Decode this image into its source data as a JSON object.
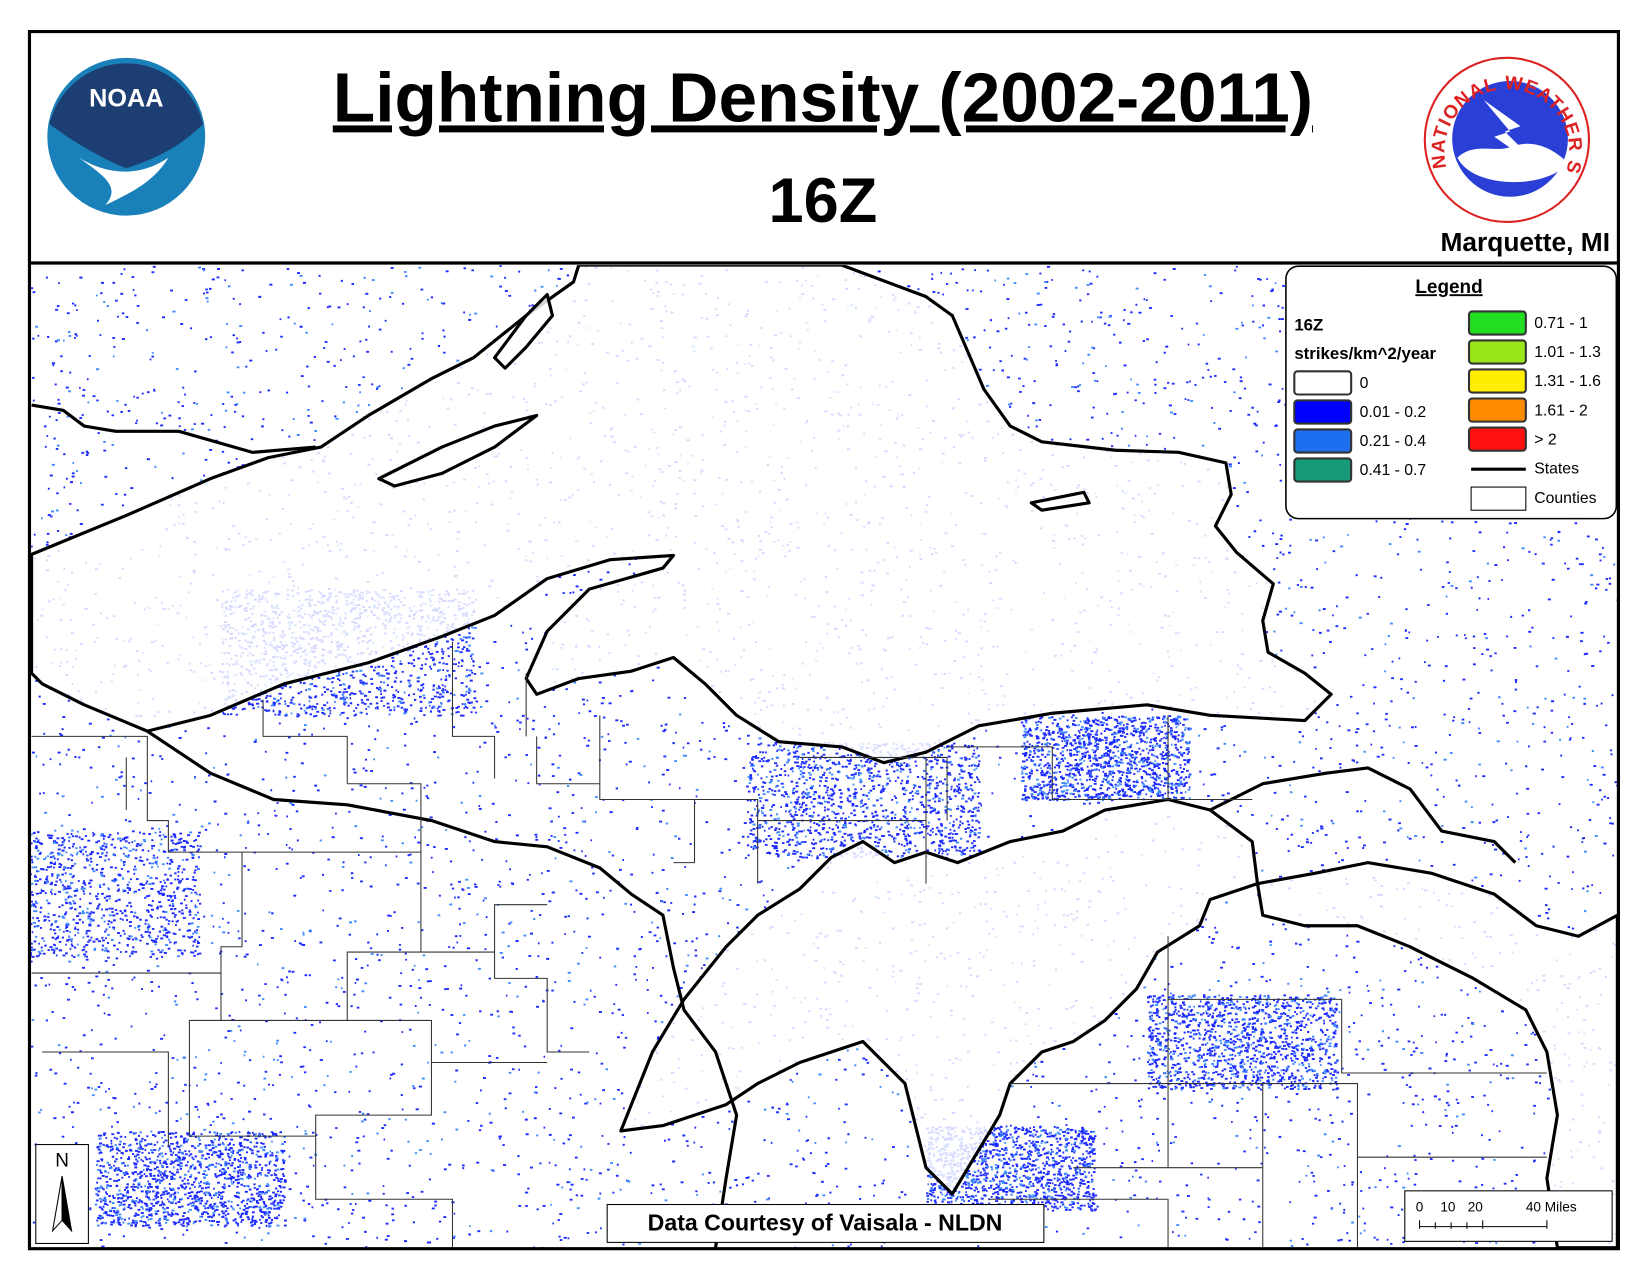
{
  "header": {
    "title": "Lightning Density (2002-2011)",
    "subtitle": "16Z",
    "office": "Marquette, MI",
    "noaa_logo": "NOAA",
    "nws_logo": "NATIONAL WEATHER SERVICE"
  },
  "legend": {
    "title": "Legend",
    "hour": "16Z",
    "units": "strikes/km^2/year",
    "items": [
      {
        "label": "0",
        "color": "#ffffff"
      },
      {
        "label": "0.01 - 0.2",
        "color": "#0000ff"
      },
      {
        "label": "0.21 - 0.4",
        "color": "#1e6ff0"
      },
      {
        "label": "0.41 - 0.7",
        "color": "#169a78"
      },
      {
        "label": "0.71 - 1",
        "color": "#22dd22"
      },
      {
        "label": "1.01 - 1.3",
        "color": "#99e61a"
      },
      {
        "label": "1.31 - 1.6",
        "color": "#ffee00"
      },
      {
        "label": "1.61 - 2",
        "color": "#ff8c00"
      },
      {
        "label": "> 2",
        "color": "#ff1010"
      }
    ],
    "lines": [
      {
        "label": "States"
      },
      {
        "label": "Counties"
      }
    ]
  },
  "credit": "Data Courtesy of Vaisala - NLDN",
  "north_arrow": "N",
  "scale_bar": {
    "labels": [
      "0",
      "10",
      "20",
      "40 Miles"
    ]
  }
}
